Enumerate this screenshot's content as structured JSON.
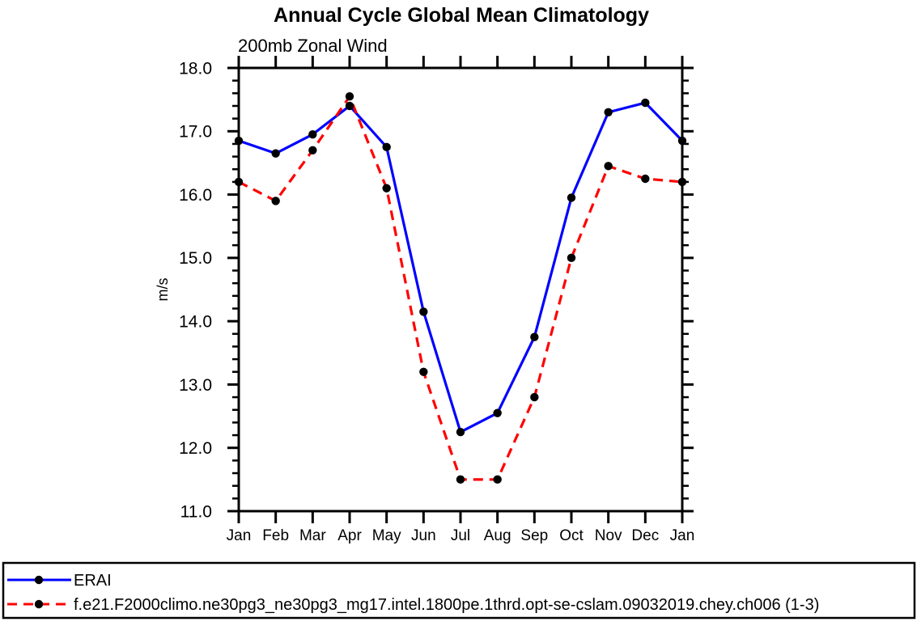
{
  "chart": {
    "title": "Annual Cycle Global Mean Climatology",
    "subtitle": "200mb Zonal Wind",
    "ylabel": "m/s"
  },
  "legend": {
    "entries": [
      {
        "label": "ERAI",
        "color": "#0000ff",
        "style": "solid",
        "marker_color": "#000000"
      },
      {
        "label": "f.e21.F2000climo.ne30pg3_ne30pg3_mg17.intel.1800pe.1thrd.opt-se-cslam.09032019.chey.ch006 (1-3)",
        "color": "#ff0000",
        "style": "dashed",
        "marker_color": "#000000"
      }
    ]
  },
  "chart_data": {
    "type": "line",
    "title": "Annual Cycle Global Mean Climatology",
    "subtitle": "200mb Zonal Wind",
    "xlabel": "",
    "ylabel": "m/s",
    "categories": [
      "Jan",
      "Feb",
      "Mar",
      "Apr",
      "May",
      "Jun",
      "Jul",
      "Aug",
      "Sep",
      "Oct",
      "Nov",
      "Dec",
      "Jan"
    ],
    "series": [
      {
        "name": "ERAI",
        "color": "#0000ff",
        "style": "solid",
        "marker": "black-dot",
        "values": [
          16.85,
          16.65,
          16.95,
          17.4,
          16.75,
          14.15,
          12.25,
          12.55,
          13.75,
          15.95,
          17.3,
          17.45,
          16.85
        ]
      },
      {
        "name": "f.e21.F2000climo.ne30pg3_ne30pg3_mg17.intel.1800pe.1thrd.opt-se-cslam.09032019.chey.ch006 (1-3)",
        "color": "#ff0000",
        "style": "dashed",
        "marker": "black-dot",
        "values": [
          16.2,
          15.9,
          16.7,
          17.55,
          16.1,
          13.2,
          11.5,
          11.5,
          12.8,
          15.0,
          16.45,
          16.25,
          16.2
        ]
      }
    ],
    "ylim": [
      11.0,
      18.0
    ],
    "ytick_major_step": 1.0,
    "ytick_minor_step": 0.2,
    "ytick_labels": [
      "11.0",
      "12.0",
      "13.0",
      "14.0",
      "15.0",
      "16.0",
      "17.0",
      "18.0"
    ],
    "grid": false,
    "legend_position": "bottom",
    "axis_color": "#000000",
    "marker_color": "#000000"
  }
}
